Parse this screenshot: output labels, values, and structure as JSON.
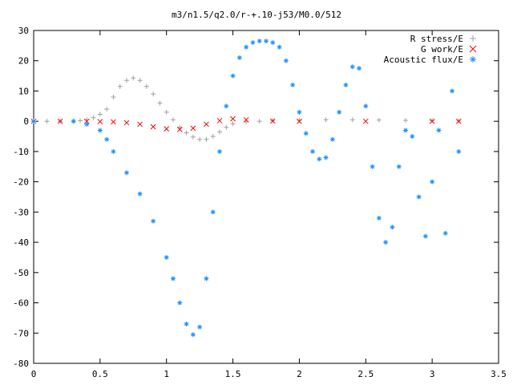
{
  "chart_data": {
    "type": "scatter",
    "title": "m3/n1.5/q2.0/r-+.10-j53/M0.0/512",
    "xlabel": "",
    "ylabel": "",
    "xlim": [
      0,
      3.5
    ],
    "ylim": [
      -80,
      30
    ],
    "x_ticks": [
      0,
      0.5,
      1,
      1.5,
      2,
      2.5,
      3,
      3.5
    ],
    "x_tick_labels": [
      "0",
      "0.5",
      "1",
      "1.5",
      "2",
      "2.5",
      "3",
      "3.5"
    ],
    "y_ticks": [
      -80,
      -70,
      -60,
      -50,
      -40,
      -30,
      -20,
      -10,
      0,
      10,
      20,
      30
    ],
    "y_tick_labels": [
      "-80",
      "-70",
      "-60",
      "-50",
      "-40",
      "-30",
      "-20",
      "-10",
      "0",
      "10",
      "20",
      "30"
    ],
    "grid": false,
    "legend_position": "top-right",
    "series": [
      {
        "name": "R stress/E",
        "marker": "+",
        "color": "#a0a0a0",
        "x": [
          0,
          0.1,
          0.2,
          0.3,
          0.35,
          0.4,
          0.45,
          0.5,
          0.55,
          0.6,
          0.65,
          0.7,
          0.75,
          0.8,
          0.85,
          0.9,
          0.95,
          1.0,
          1.05,
          1.1,
          1.15,
          1.2,
          1.25,
          1.3,
          1.35,
          1.4,
          1.45,
          1.5,
          1.6,
          1.7,
          1.8,
          2.0,
          2.2,
          2.4,
          2.6,
          2.8,
          3.0,
          3.2
        ],
        "y": [
          0,
          0,
          0,
          0,
          0.2,
          0.5,
          1.2,
          2.3,
          4.0,
          8.0,
          11.5,
          13.5,
          14.3,
          13.5,
          11.5,
          9.0,
          6.0,
          3.0,
          0.5,
          -2.0,
          -3.8,
          -5.2,
          -6.0,
          -6.0,
          -5.0,
          -3.5,
          -2.0,
          -0.8,
          -0.2,
          0.0,
          0.2,
          0.3,
          0.5,
          0.5,
          0.4,
          0.3,
          0.2,
          0.1
        ]
      },
      {
        "name": "G work/E",
        "marker": "x",
        "color": "#ff0000",
        "x": [
          0,
          0.2,
          0.4,
          0.5,
          0.6,
          0.7,
          0.8,
          0.9,
          1.0,
          1.1,
          1.2,
          1.3,
          1.4,
          1.5,
          1.6,
          1.8,
          2.0,
          2.5,
          3.0,
          3.2
        ],
        "y": [
          0,
          0,
          0,
          -0.1,
          -0.2,
          -0.5,
          -1.0,
          -1.8,
          -2.5,
          -2.7,
          -2.3,
          -1.0,
          0.2,
          0.8,
          0.5,
          0.1,
          0,
          0,
          0,
          0
        ]
      },
      {
        "name": "Acoustic flux/E",
        "marker": "*",
        "color": "#1e90ff",
        "x": [
          0,
          0.3,
          0.4,
          0.5,
          0.55,
          0.6,
          0.7,
          0.8,
          0.9,
          1.0,
          1.05,
          1.1,
          1.15,
          1.2,
          1.25,
          1.3,
          1.35,
          1.4,
          1.45,
          1.5,
          1.55,
          1.6,
          1.65,
          1.7,
          1.75,
          1.8,
          1.85,
          1.9,
          1.95,
          2.0,
          2.05,
          2.1,
          2.15,
          2.2,
          2.25,
          2.3,
          2.35,
          2.4,
          2.45,
          2.5,
          2.55,
          2.6,
          2.65,
          2.7,
          2.75,
          2.8,
          2.85,
          2.9,
          2.95,
          3.0,
          3.05,
          3.1,
          3.15,
          3.2
        ],
        "y": [
          0,
          0,
          -1.0,
          -3.0,
          -6.0,
          -10.0,
          -17.0,
          -24.0,
          -33.0,
          -45.0,
          -52.0,
          -60.0,
          -67.0,
          -70.5,
          -68.0,
          -52.0,
          -30.0,
          -10.0,
          5.0,
          15.0,
          21.0,
          24.5,
          26.0,
          26.5,
          26.5,
          26.0,
          24.5,
          20.0,
          12.0,
          3.0,
          -4.0,
          -10.0,
          -12.5,
          -12.0,
          -6.0,
          3.0,
          12.0,
          18.0,
          17.5,
          5.0,
          -15.0,
          -32.0,
          -40.0,
          -35.0,
          -15.0,
          -3.0,
          -5.0,
          -25.0,
          -38.0,
          -20.0,
          -3.0,
          -37.0,
          10.0,
          -10.0
        ]
      }
    ]
  }
}
